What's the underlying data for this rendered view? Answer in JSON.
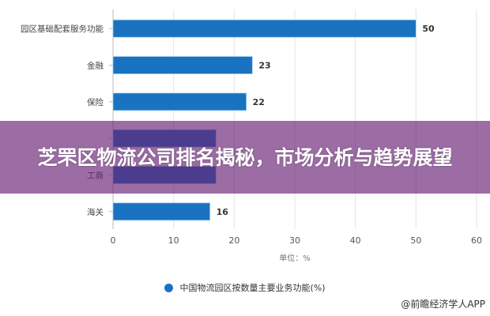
{
  "chart_data": {
    "type": "bar",
    "orientation": "horizontal",
    "categories": [
      "园区基础配套服务功能",
      "金融",
      "保险",
      "",
      "工商",
      "海关"
    ],
    "values": [
      50,
      23,
      22,
      17,
      17,
      16
    ],
    "data_labels": [
      "50",
      "23",
      "22",
      null,
      null,
      "16"
    ],
    "xlabel": "单位：%",
    "xlim": [
      0,
      60
    ],
    "xticks": [
      "0",
      "10",
      "20",
      "30",
      "40",
      "50",
      "60"
    ],
    "grid": true,
    "legend": {
      "placement": "bottom",
      "entries": [
        "中国物流园区按数量主要业务功能(%)"
      ]
    },
    "series_color": "#1a73c0"
  },
  "overlay": {
    "title": "芝罘区物流公司排名揭秘，市场分析与趋势展望"
  },
  "source": "@前瞻经济学人APP"
}
